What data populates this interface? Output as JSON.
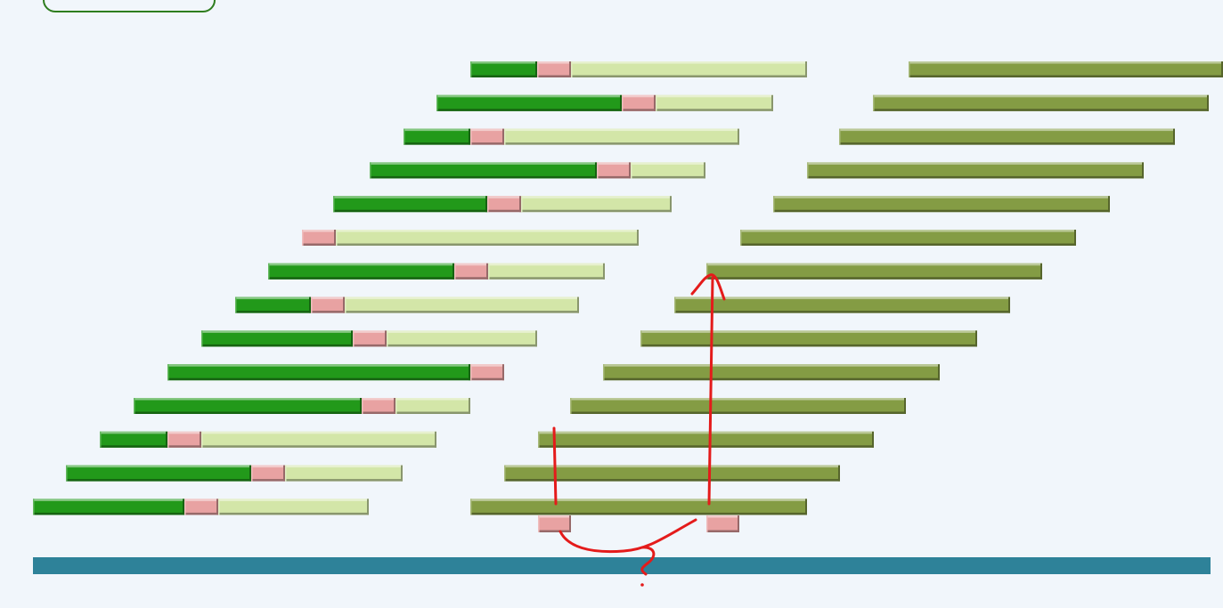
{
  "colors": {
    "background": "#f1f6fb",
    "dark_green": "#22991a",
    "pink": "#e8a2a2",
    "light_green": "#d3e6a8",
    "olive": "#849c44",
    "teal_bar": "#2e8299",
    "annotation_red": "#e41b1b",
    "box_border": "#2e7d1e"
  },
  "diagram": {
    "left_rows": [
      {
        "dark": 1,
        "light": 1
      },
      {
        "dark": 1,
        "light": 1
      },
      {
        "dark": 1,
        "light": 1
      },
      {
        "dark": 1,
        "light": 1
      },
      {
        "dark": 1,
        "light": 1
      },
      {
        "dark": 0,
        "light": 1
      },
      {
        "dark": 1,
        "light": 1
      },
      {
        "dark": 1,
        "light": 1
      },
      {
        "dark": 1,
        "light": 1
      },
      {
        "dark": 1,
        "light": 0
      },
      {
        "dark": 1,
        "light": 1
      },
      {
        "dark": 1,
        "light": 1
      },
      {
        "dark": 1,
        "light": 1
      },
      {
        "dark": 1,
        "light": 1
      }
    ],
    "right_row_count": 14,
    "annotation_text": "?"
  }
}
